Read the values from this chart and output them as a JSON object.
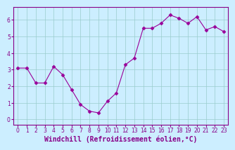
{
  "x": [
    0,
    1,
    2,
    3,
    4,
    5,
    6,
    7,
    8,
    9,
    10,
    11,
    12,
    13,
    14,
    15,
    16,
    17,
    18,
    19,
    20,
    21,
    22,
    23
  ],
  "y": [
    3.1,
    3.1,
    2.2,
    2.2,
    3.2,
    2.7,
    1.8,
    0.9,
    0.5,
    0.4,
    1.1,
    1.6,
    3.3,
    3.7,
    5.5,
    5.5,
    5.8,
    6.3,
    6.1,
    5.8,
    6.2,
    5.4,
    5.6,
    5.3
  ],
  "line_color": "#990099",
  "marker": "D",
  "marker_size": 2.5,
  "bg_color": "#cceeff",
  "grid_color": "#99cccc",
  "xlabel": "Windchill (Refroidissement éolien,°C)",
  "tick_color": "#880088",
  "ylim": [
    -0.3,
    6.8
  ],
  "xlim": [
    -0.5,
    23.5
  ],
  "yticks": [
    0,
    1,
    2,
    3,
    4,
    5,
    6
  ],
  "xticks": [
    0,
    1,
    2,
    3,
    4,
    5,
    6,
    7,
    8,
    9,
    10,
    11,
    12,
    13,
    14,
    15,
    16,
    17,
    18,
    19,
    20,
    21,
    22,
    23
  ],
  "tick_label_fontsize": 5.5,
  "xlabel_fontsize": 7.0,
  "xlabel_color": "#880088"
}
